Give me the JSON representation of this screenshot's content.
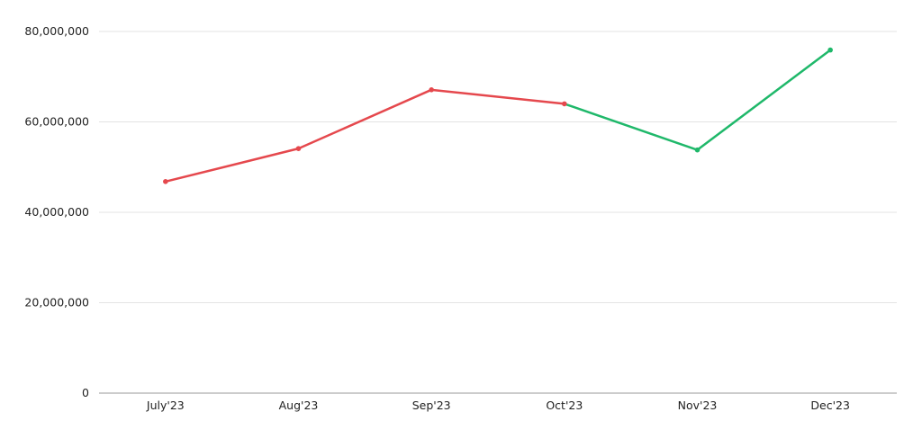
{
  "chart_data": {
    "type": "line",
    "title": "",
    "xlabel": "",
    "ylabel": "",
    "categories": [
      "July'23",
      "Aug'23",
      "Sep'23",
      "Oct'23",
      "Nov'23",
      "Dec'23"
    ],
    "values": [
      46800000,
      54100000,
      67100000,
      64000000,
      53800000,
      75900000
    ],
    "segment_colors": [
      {
        "from": "July'23",
        "to": "Oct'23",
        "color": "#e5484d"
      },
      {
        "from": "Oct'23",
        "to": "Dec'23",
        "color": "#1fb86a"
      }
    ],
    "ylim": [
      0,
      80000000
    ],
    "yticks": [
      0,
      20000000,
      40000000,
      60000000,
      80000000
    ],
    "ytick_labels": [
      "0",
      "20,000,000",
      "40,000,000",
      "60,000,000",
      "80,000,000"
    ],
    "grid": true,
    "legend": "none"
  }
}
